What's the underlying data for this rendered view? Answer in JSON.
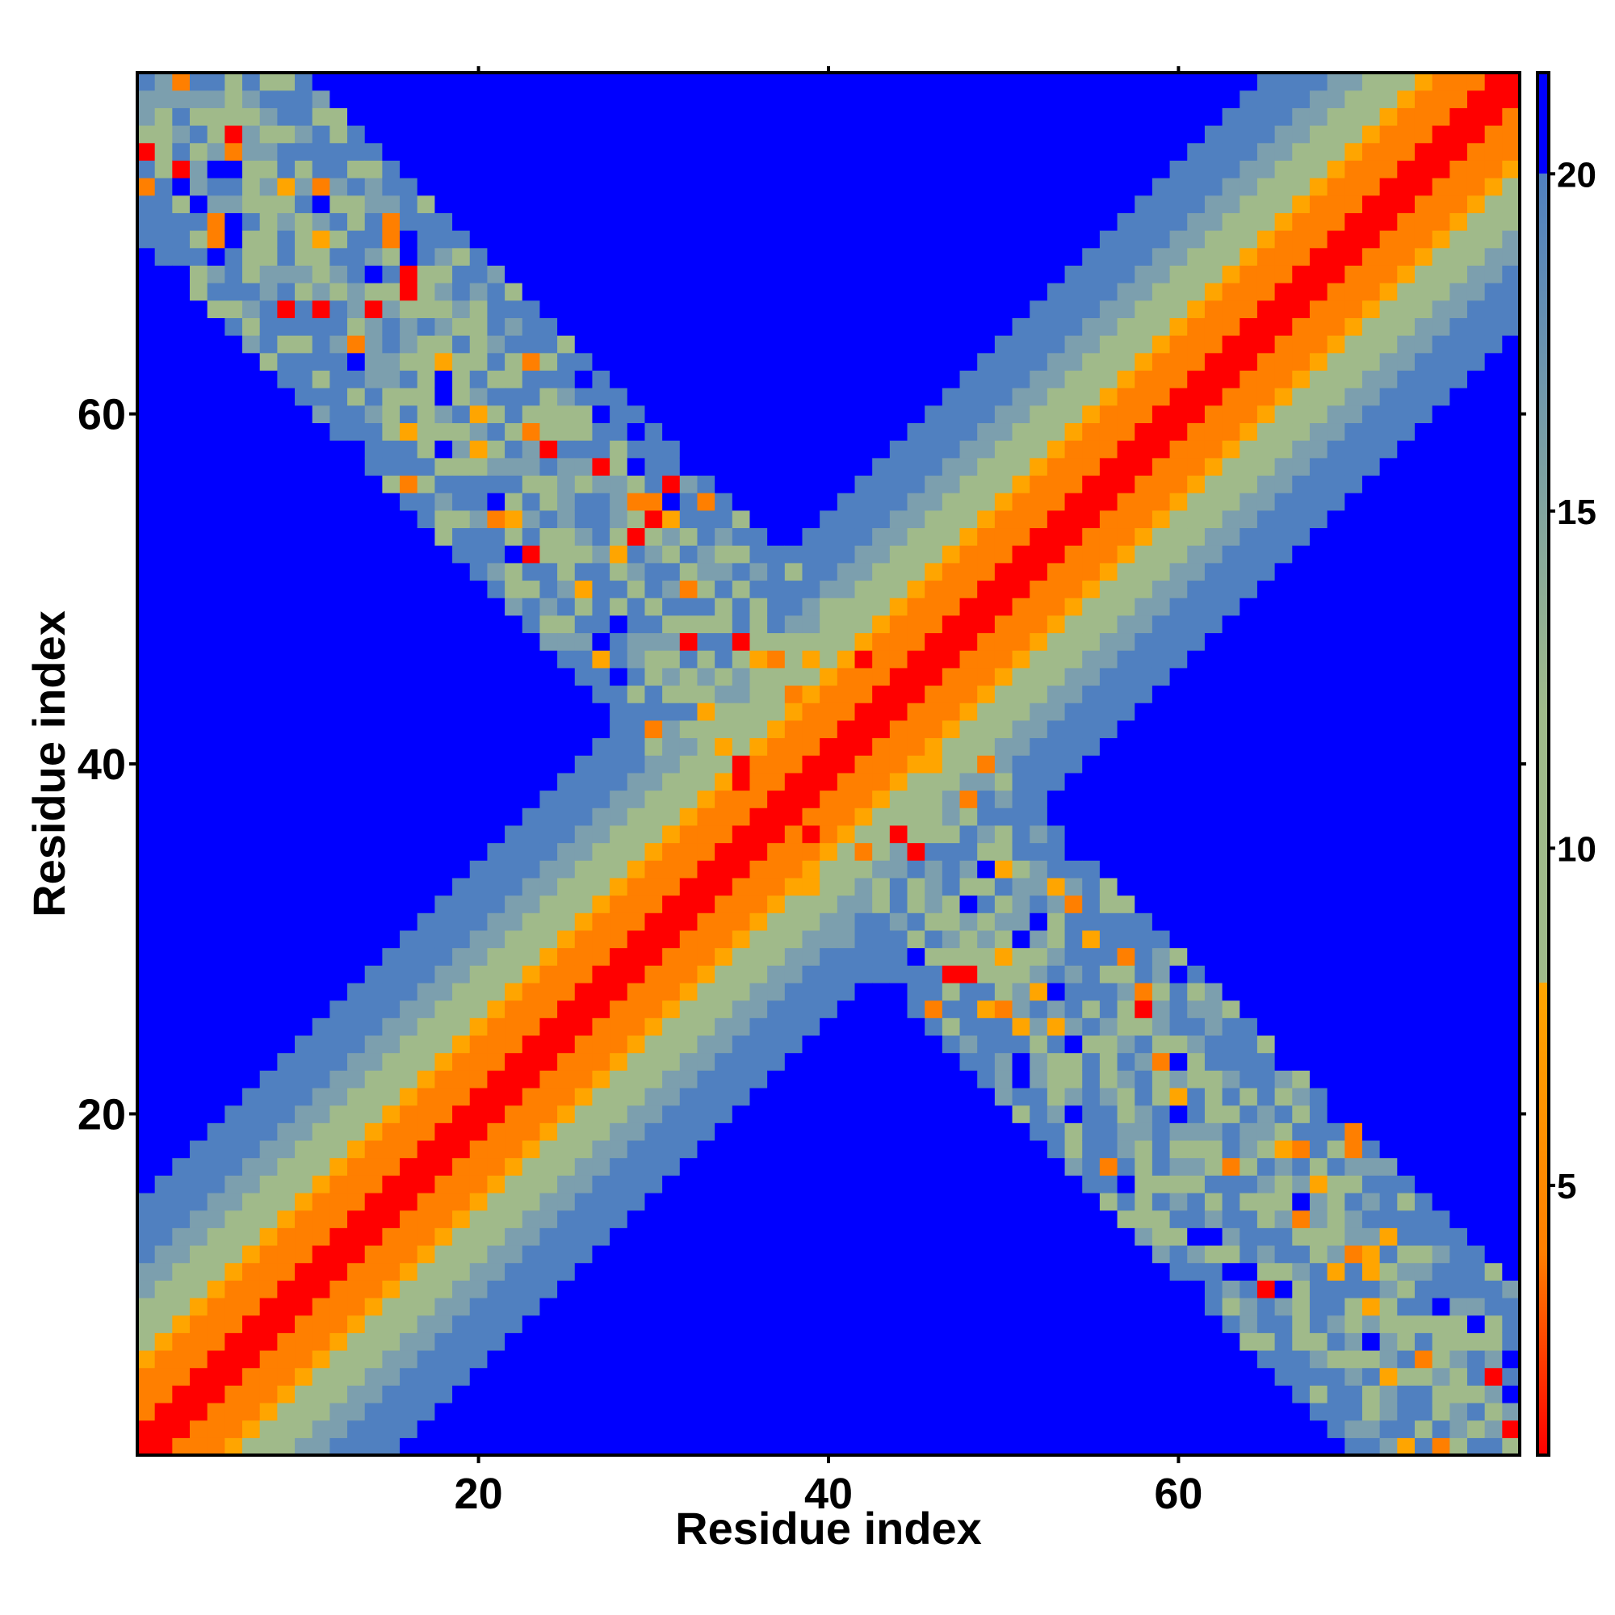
{
  "chart_data": {
    "type": "heatmap",
    "title": "",
    "xlabel": "Residue index",
    "ylabel": "Residue index",
    "xlim": [
      1,
      79
    ],
    "ylim": [
      1,
      79
    ],
    "n_residues": 79,
    "x_ticks": [
      20,
      40,
      60
    ],
    "y_ticks": [
      20,
      40,
      60
    ],
    "grid": false,
    "colorbar": {
      "placement": "right",
      "ticks": [
        5,
        10,
        15,
        20
      ],
      "range": [
        1,
        21.5
      ],
      "stops": [
        {
          "value": 1,
          "color": "#ff0000"
        },
        {
          "value": 4,
          "color": "#ff7f00"
        },
        {
          "value": 8,
          "color": "#ffa500"
        },
        {
          "value": 8.01,
          "color": "#a0ba8a"
        },
        {
          "value": 12,
          "color": "#a0ba8a"
        },
        {
          "value": 20,
          "color": "#5080c0"
        },
        {
          "value": 20.01,
          "color": "#0000ff"
        },
        {
          "value": 21.5,
          "color": "#0000ff"
        }
      ]
    },
    "matrix_model": {
      "description_of_values": "pairwise residue distance (colorbar units); diagonal band plus anti-diagonal contact band",
      "diagonal_band": {
        "base": 1,
        "slope": 1.35,
        "cutoff": 20
      },
      "anti_diagonal_band": {
        "center_sum": 80,
        "half_width_start": 3,
        "half_width_end": 16,
        "value_range": [
          8,
          19
        ]
      },
      "background_value": 21.5
    },
    "colors": {
      "red": "#ff0000",
      "orange": "#ff7f00",
      "gold": "#ffa500",
      "sage": "#a0ba8a",
      "steel": "#5080c0",
      "blue": "#0000ff"
    }
  }
}
